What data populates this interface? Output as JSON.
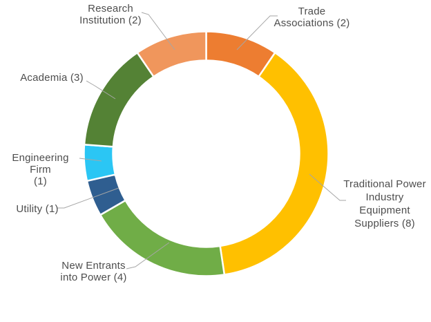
{
  "chart_data": {
    "type": "pie",
    "subtype": "donut",
    "title": "",
    "total": 21,
    "start_angle_deg": 0,
    "direction": "clockwise",
    "legend_position": "none",
    "data_labels": "category callouts with leader lines",
    "segments": [
      {
        "category": "Trade Associations",
        "value": 2,
        "label": "Trade Associations (2)",
        "label_lines": [
          "Trade",
          "Associations (2)"
        ],
        "color": "#ED7D31"
      },
      {
        "category": "Traditional Power Industry Equipment Suppliers",
        "value": 8,
        "label": "Traditional Power Industry Equipment Suppliers (8)",
        "label_lines": [
          "Traditional Power",
          "Industry",
          "Equipment",
          "Suppliers (8)"
        ],
        "color": "#FFC000"
      },
      {
        "category": "New Entrants into Power",
        "value": 4,
        "label": "New Entrants into Power (4)",
        "label_lines": [
          "New Entrants",
          "into Power (4)"
        ],
        "color": "#70AD47"
      },
      {
        "category": "Utility",
        "value": 1,
        "label": "Utility (1)",
        "label_lines": [
          "Utility (1)"
        ],
        "color": "#2F5E90"
      },
      {
        "category": "Engineering Firm",
        "value": 1,
        "label": "Engineering Firm (1)",
        "label_lines": [
          "Engineering Firm",
          "(1)"
        ],
        "color": "#2BC6F4"
      },
      {
        "category": "Academia",
        "value": 3,
        "label": "Academia (3)",
        "label_lines": [
          "Academia (3)"
        ],
        "color": "#548235"
      },
      {
        "category": "Research Institution",
        "value": 2,
        "label": "Research Institution (2)",
        "label_lines": [
          "Research",
          "Institution (2)"
        ],
        "color": "#F0965C"
      }
    ]
  },
  "styles": {
    "background": "#FFFFFF",
    "label_color": "#4D4D4D",
    "leader_line_color": "#A6A6A6",
    "slice_gap_color": "#FFFFFF"
  }
}
